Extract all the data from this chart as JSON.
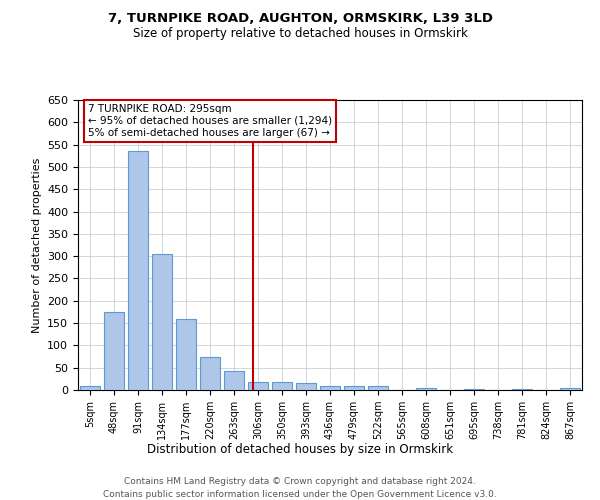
{
  "title1": "7, TURNPIKE ROAD, AUGHTON, ORMSKIRK, L39 3LD",
  "title2": "Size of property relative to detached houses in Ormskirk",
  "xlabel": "Distribution of detached houses by size in Ormskirk",
  "ylabel": "Number of detached properties",
  "footnote1": "Contains HM Land Registry data © Crown copyright and database right 2024.",
  "footnote2": "Contains public sector information licensed under the Open Government Licence v3.0.",
  "annotation_title": "7 TURNPIKE ROAD: 295sqm",
  "annotation_line1": "← 95% of detached houses are smaller (1,294)",
  "annotation_line2": "5% of semi-detached houses are larger (67) →",
  "bins": [
    "5sqm",
    "48sqm",
    "91sqm",
    "134sqm",
    "177sqm",
    "220sqm",
    "263sqm",
    "306sqm",
    "350sqm",
    "393sqm",
    "436sqm",
    "479sqm",
    "522sqm",
    "565sqm",
    "608sqm",
    "651sqm",
    "695sqm",
    "738sqm",
    "781sqm",
    "824sqm",
    "867sqm"
  ],
  "values": [
    10,
    175,
    535,
    305,
    160,
    75,
    42,
    18,
    18,
    15,
    10,
    10,
    8,
    0,
    5,
    0,
    3,
    0,
    3,
    0,
    5
  ],
  "bar_color": "#aec6e8",
  "bar_edge_color": "#5b9bd5",
  "vline_x_index": 6.78,
  "vline_color": "#c00000",
  "ylim": [
    0,
    650
  ],
  "yticks": [
    0,
    50,
    100,
    150,
    200,
    250,
    300,
    350,
    400,
    450,
    500,
    550,
    600,
    650
  ],
  "annotation_box_color": "#ffffff",
  "annotation_box_edge": "#c00000",
  "bg_color": "#ffffff",
  "grid_color": "#c8d0d8"
}
